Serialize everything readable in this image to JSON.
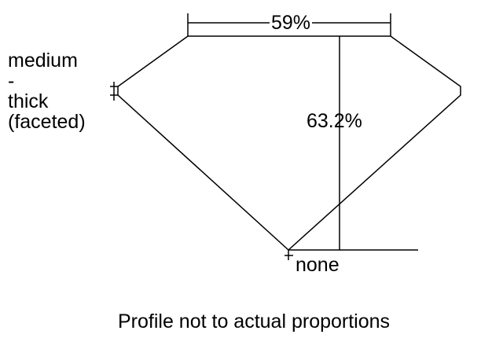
{
  "labels": {
    "table_width": "59%",
    "total_depth": "63.2%",
    "girdle_line1": "medium",
    "girdle_line2": "-",
    "girdle_line3": "thick",
    "girdle_line4": "(faceted)",
    "culet": "none",
    "footnote": "Profile not to actual proportions"
  },
  "colors": {
    "line": "#000000",
    "background": "#ffffff"
  }
}
